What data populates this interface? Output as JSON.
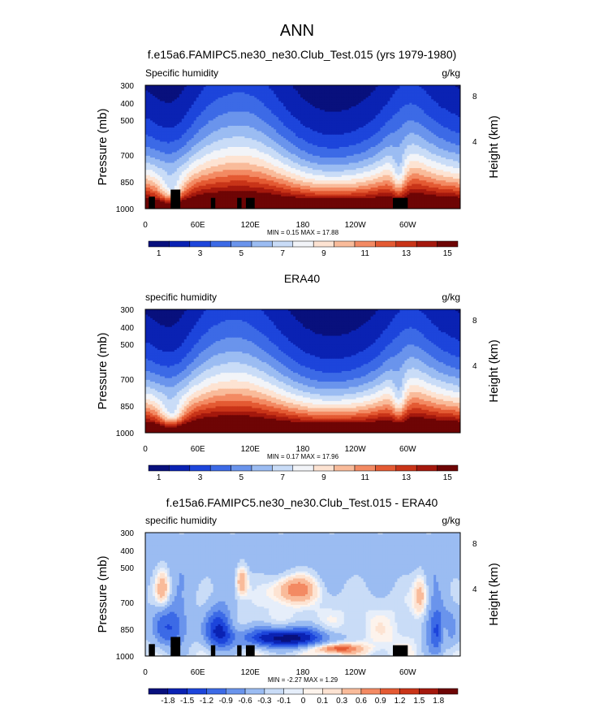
{
  "page_title": "ANN",
  "colors": {
    "abs_scale": [
      "#08107d",
      "#0a22b3",
      "#1d45db",
      "#3c6ae6",
      "#6a94ec",
      "#9bbcf2",
      "#c9dcf7",
      "#f2f4f8",
      "#fde3d2",
      "#f9bb9a",
      "#f38a63",
      "#e45a33",
      "#c93418",
      "#a4180d",
      "#6e0505"
    ],
    "diff_scale": [
      "#08107d",
      "#0a22b3",
      "#1d45db",
      "#3c6ae6",
      "#6a94ec",
      "#9bbcf2",
      "#c9dcf7",
      "#e6eefa",
      "#fdf3ec",
      "#fde3d2",
      "#f9bb9a",
      "#f38a63",
      "#e45a33",
      "#c93418",
      "#a4180d",
      "#6e0505"
    ],
    "land_mask": "#000000"
  },
  "chart_data": [
    {
      "type": "heatmap",
      "title": "f.e15a6.FAMIPC5.ne30_ne30.Club_Test.015 (yrs 1979-1980)",
      "left_label": "Specific humidity",
      "right_label": "g/kg",
      "ylabel": "Pressure (mb)",
      "y2label": "Height (km)",
      "x_ticks": [
        "0",
        "60E",
        "120E",
        "180",
        "120W",
        "60W"
      ],
      "y_ticks": [
        "300",
        "400",
        "500",
        "700",
        "850",
        "1000"
      ],
      "y2_ticks": [
        "8",
        "4"
      ],
      "stats": "MIN =  0.15  MAX =  17.88",
      "min": 0.15,
      "max": 17.88,
      "colorbar_labels": [
        "1",
        "3",
        "5",
        "7",
        "9",
        "11",
        "13",
        "15"
      ],
      "land_mask_lon": [
        [
          4,
          11
        ],
        [
          75,
          80
        ],
        [
          105,
          110
        ],
        [
          115,
          125
        ],
        [
          283,
          300
        ]
      ]
    },
    {
      "type": "heatmap",
      "title": "ERA40",
      "left_label": "specific humidity",
      "right_label": "g/kg",
      "ylabel": "Pressure (mb)",
      "y2label": "Height (km)",
      "x_ticks": [
        "0",
        "60E",
        "120E",
        "180",
        "120W",
        "60W"
      ],
      "y_ticks": [
        "300",
        "400",
        "500",
        "700",
        "850",
        "1000"
      ],
      "y2_ticks": [
        "8",
        "4"
      ],
      "stats": "MIN =  0.17  MAX =  17.96",
      "min": 0.17,
      "max": 17.96,
      "colorbar_labels": [
        "1",
        "3",
        "5",
        "7",
        "9",
        "11",
        "13",
        "15"
      ]
    },
    {
      "type": "heatmap",
      "title": "f.e15a6.FAMIPC5.ne30_ne30.Club_Test.015 - ERA40",
      "left_label": "specific humidity",
      "right_label": "g/kg",
      "ylabel": "Pressure (mb)",
      "y2label": "Height (km)",
      "x_ticks": [
        "0",
        "60E",
        "120E",
        "180",
        "120W",
        "60W"
      ],
      "y_ticks": [
        "300",
        "400",
        "500",
        "700",
        "850",
        "1000"
      ],
      "y2_ticks": [
        "8",
        "4"
      ],
      "stats": "MIN =  -2.27  MAX =  1.29",
      "min": -2.27,
      "max": 1.29,
      "colorbar_labels": [
        "-1.8",
        "-1.5",
        "-1.2",
        "-0.9",
        "-0.6",
        "-0.3",
        "-0.1",
        "0",
        "0.1",
        "0.3",
        "0.6",
        "0.9",
        "1.2",
        "1.5",
        "1.8"
      ],
      "land_mask_lon": [
        [
          4,
          11
        ],
        [
          75,
          80
        ],
        [
          105,
          110
        ],
        [
          115,
          125
        ],
        [
          283,
          300
        ]
      ]
    }
  ]
}
